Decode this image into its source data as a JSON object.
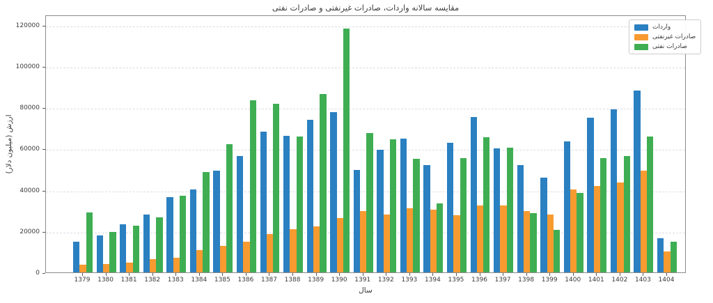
{
  "title": "مقایسه سالانه واردات، صادرات غیرنفتی و صادرات نفتی",
  "chart_data": {
    "type": "bar",
    "title": "مقایسه سالانه واردات، صادرات غیرنفتی و صادرات نفتی",
    "xlabel": "سال",
    "ylabel": "ارزش (میلیون دلار)",
    "categories": [
      "1379",
      "1380",
      "1381",
      "1382",
      "1383",
      "1384",
      "1385",
      "1386",
      "1387",
      "1388",
      "1389",
      "1390",
      "1391",
      "1392",
      "1393",
      "1394",
      "1395",
      "1396",
      "1397",
      "1398",
      "1399",
      "1400",
      "1401",
      "1402",
      "1403",
      "1404"
    ],
    "series": [
      {
        "name": "واردات",
        "color": "#2a80c1",
        "values": [
          14800,
          17800,
          23300,
          28200,
          36400,
          40300,
          49300,
          56300,
          68100,
          66300,
          74000,
          77600,
          49600,
          59500,
          64900,
          52100,
          62800,
          75200,
          60300,
          52000,
          46000,
          63400,
          75000,
          79200,
          88200,
          16600
        ]
      },
      {
        "name": "صادرات غیرنفتی",
        "color": "#f79b30",
        "values": [
          3800,
          4200,
          4700,
          6500,
          7200,
          10800,
          12800,
          15000,
          18500,
          21000,
          22200,
          26500,
          29700,
          28000,
          31000,
          30300,
          27700,
          32300,
          32500,
          29900,
          28000,
          40300,
          42000,
          43500,
          49300,
          10100
        ]
      },
      {
        "name": "صادرات نفتی",
        "color": "#3fae53",
        "values": [
          29000,
          19500,
          22500,
          26800,
          37000,
          48500,
          62300,
          83500,
          81700,
          66000,
          86600,
          118300,
          67500,
          64600,
          55000,
          33500,
          55400,
          65700,
          60600,
          28800,
          20500,
          38500,
          55400,
          56500,
          65800,
          14800
        ]
      }
    ],
    "ylim": [
      0,
      125000
    ],
    "yticks": [
      0,
      20000,
      40000,
      60000,
      80000,
      100000,
      120000
    ],
    "grid": true,
    "legend_position": "top-right"
  },
  "style_colors": {
    "grid": "#dcdce6",
    "spine": "#8a8a8a",
    "text": "#3a3a3a",
    "background": "#ffffff"
  }
}
